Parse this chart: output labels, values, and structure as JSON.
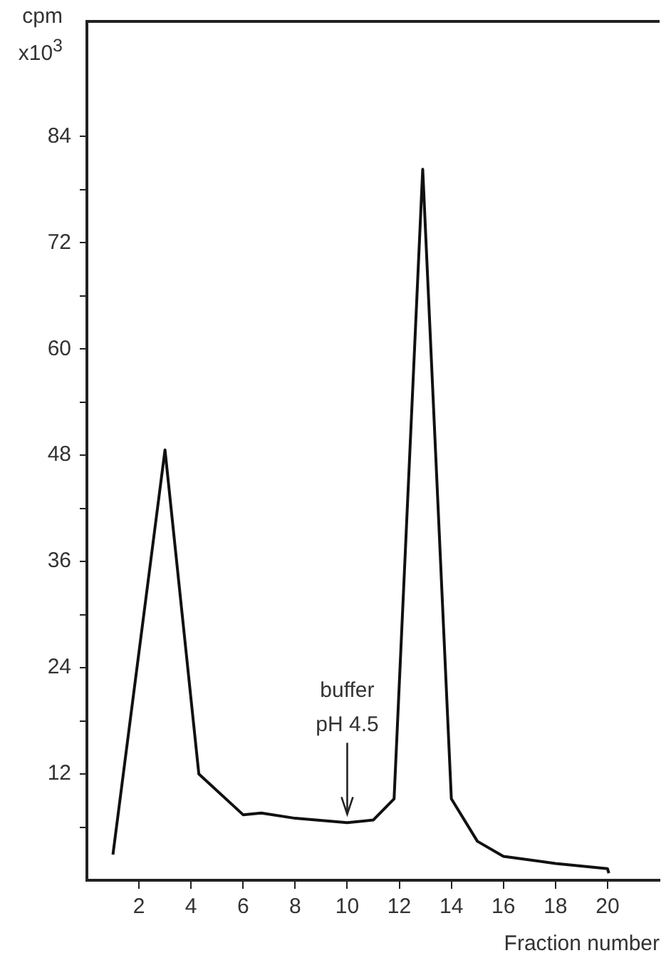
{
  "chart_data": {
    "type": "line",
    "xlabel": "Fraction number",
    "ylabel": "cpm x10$^{3}$",
    "x": [
      1,
      3,
      4.3,
      6,
      6.7,
      8,
      10,
      11,
      11.8,
      12.9,
      14,
      15,
      16,
      18,
      20,
      20.05
    ],
    "series": [
      {
        "color": "#111111",
        "values": [
          2.9,
          48.6,
          12,
          7.4,
          7.6,
          7,
          6.5,
          6.8,
          9.2,
          80.3,
          9.2,
          4.4,
          2.7,
          1.9,
          1.3,
          0.8
        ]
      }
    ],
    "xlim": [
      0,
      22
    ],
    "xticks": [
      2,
      4,
      6,
      8,
      10,
      12,
      14,
      16,
      18,
      20
    ],
    "ylim": [
      0,
      97
    ],
    "yticks": [
      {
        "value": 6,
        "label": null
      },
      12,
      {
        "value": 18,
        "label": null
      },
      24,
      {
        "value": 30,
        "label": null
      },
      36,
      {
        "value": 42,
        "label": null
      },
      48,
      {
        "value": 54,
        "label": null
      },
      60,
      {
        "value": 66,
        "label": null
      },
      72,
      {
        "value": 78,
        "label": null
      },
      84
    ],
    "annotations": [
      {
        "text": "buffer\npH 4.5",
        "x": 10,
        "y": 6.5
      }
    ],
    "grid": false,
    "legend": false,
    "marker": "none",
    "line_style": "solid"
  }
}
